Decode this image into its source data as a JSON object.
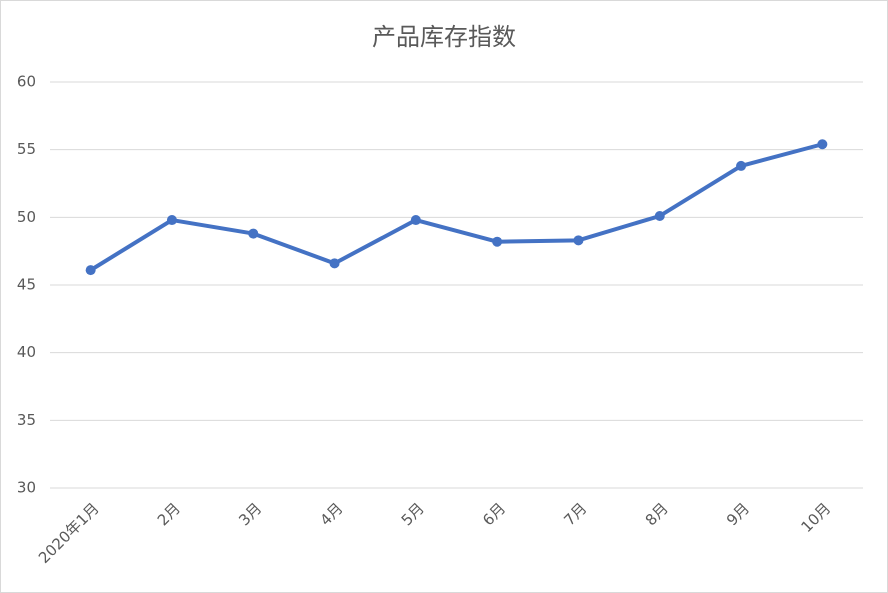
{
  "chart_data": {
    "type": "line",
    "title": "产品库存指数",
    "categories": [
      "2020年1月",
      "2月",
      "3月",
      "4月",
      "5月",
      "6月",
      "7月",
      "8月",
      "9月",
      "10月"
    ],
    "values": [
      46.1,
      49.8,
      48.8,
      46.6,
      49.8,
      48.2,
      48.3,
      50.1,
      53.8,
      55.4
    ],
    "color": "#4472c4",
    "ylim": [
      30,
      60
    ],
    "yticks": [
      30,
      35,
      40,
      45,
      50,
      55,
      60
    ],
    "grid": true
  }
}
